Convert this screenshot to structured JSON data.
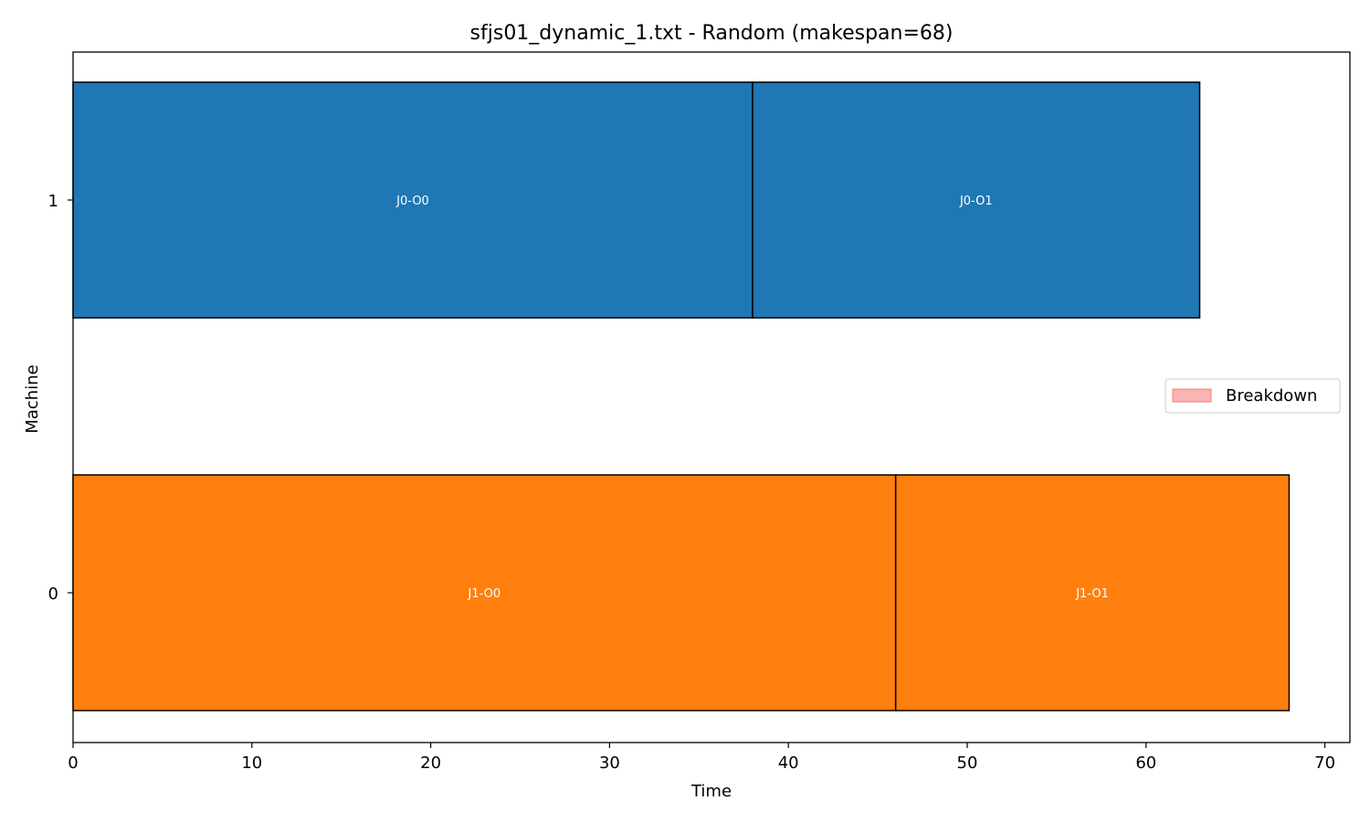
{
  "chart_data": {
    "type": "gantt",
    "title": "sfjs01_dynamic_1.txt - Random (makespan=68)",
    "xlabel": "Time",
    "ylabel": "Machine",
    "xlim": [
      0,
      71.4
    ],
    "x_ticks": [
      0,
      10,
      20,
      30,
      40,
      50,
      60,
      70
    ],
    "machines": [
      "0",
      "1"
    ],
    "tasks": [
      {
        "label": "J0-O0",
        "machine": "1",
        "start": 0,
        "end": 38,
        "color": "#1f77b4"
      },
      {
        "label": "J0-O1",
        "machine": "1",
        "start": 38,
        "end": 63,
        "color": "#1f77b4"
      },
      {
        "label": "J1-O0",
        "machine": "0",
        "start": 0,
        "end": 46,
        "color": "#ff7f0e"
      },
      {
        "label": "J1-O1",
        "machine": "0",
        "start": 46,
        "end": 68,
        "color": "#ff7f0e"
      }
    ],
    "legend": {
      "position": "center-right",
      "entries": [
        {
          "name": "Breakdown",
          "color": "#f9b4b4",
          "edge": "#f08080"
        }
      ]
    },
    "grid": false
  }
}
